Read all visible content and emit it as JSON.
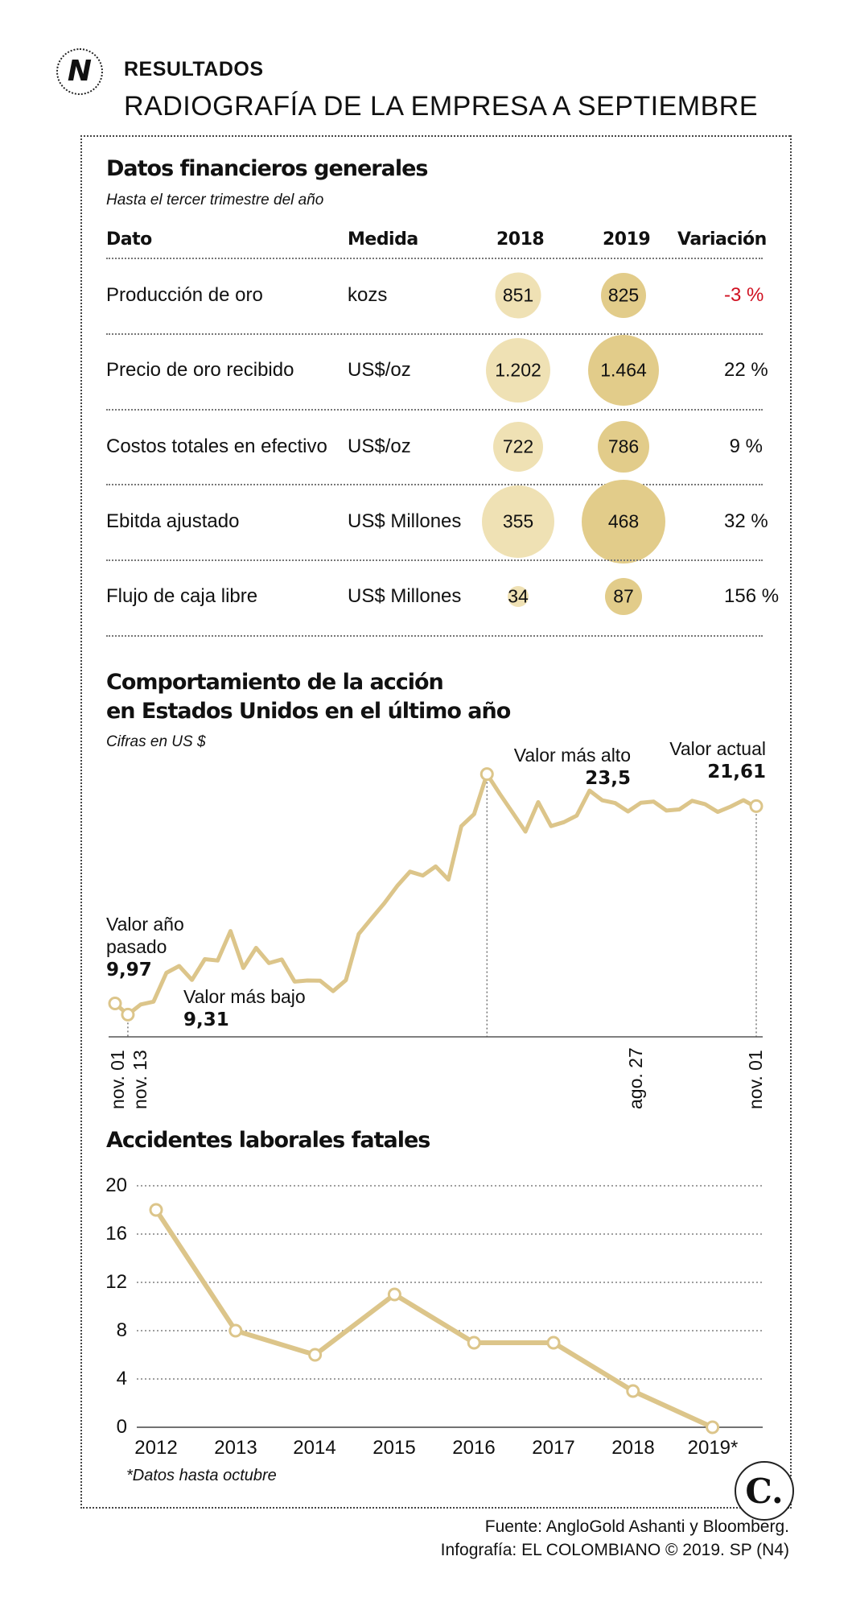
{
  "header": {
    "logo_letter": "N",
    "kicker": "RESULTADOS",
    "headline": "RADIOGRAFÍA DE LA EMPRESA A SEPTIEMBRE"
  },
  "financials": {
    "title": "Datos financieros generales",
    "subtitle": "Hasta el tercer trimestre del año",
    "columns": [
      "Dato",
      "Medida",
      "2018",
      "2019",
      "Variación"
    ],
    "rows": [
      {
        "dato": "Producción de oro",
        "medida": "kozs",
        "v2018": "851",
        "v2019": "825",
        "variacion": "-3 %"
      },
      {
        "dato": "Precio de oro recibido",
        "medida": "US$/oz",
        "v2018": "1.202",
        "v2019": "1.464",
        "variacion": "22 %"
      },
      {
        "dato": "Costos totales en efectivo",
        "medida": "US$/oz",
        "v2018": "722",
        "v2019": "786",
        "variacion": "9 %"
      },
      {
        "dato": "Ebitda ajustado",
        "medida": "US$ Millones",
        "v2018": "355",
        "v2019": "468",
        "variacion": "32 %"
      },
      {
        "dato": "Flujo de caja libre",
        "medida": "US$ Millones",
        "v2018": "34",
        "v2019": "87",
        "variacion": "156 %"
      }
    ],
    "colors": {
      "bubble_2018": "#efe1b4",
      "bubble_2019": "#e2cc8a",
      "negative": "#d01020"
    }
  },
  "stock": {
    "title_line1": "Comportamiento de la acción",
    "title_line2": "en Estados Unidos en el último año",
    "subtitle": "Cifras en US $",
    "annotations": {
      "last_year_label": "Valor año pasado",
      "last_year_line1": "Valor año",
      "last_year_line2": "pasado",
      "last_year_value": "9,97",
      "min_label": "Valor más bajo",
      "min_value": "9,31",
      "max_label": "Valor más alto",
      "max_value": "23,5",
      "current_label": "Valor actual",
      "current_value": "21,61"
    },
    "date_labels": [
      "nov. 01",
      "nov. 13",
      "ago. 27",
      "nov. 01"
    ]
  },
  "chart_data": [
    {
      "type": "line",
      "title": "Comportamiento de la acción en Estados Unidos en el último año",
      "subtitle": "Cifras en US $",
      "xlabel": "",
      "ylabel": "US $",
      "ylim": [
        8,
        25
      ],
      "x": [
        0,
        2,
        4,
        6,
        8,
        10,
        12,
        14,
        16,
        18,
        20,
        22,
        24,
        26,
        28,
        30,
        32,
        34,
        36,
        38,
        40,
        42,
        44,
        46,
        48,
        50,
        52,
        54,
        56,
        58,
        60,
        62,
        64,
        66,
        68,
        70,
        72,
        74,
        76,
        78,
        80,
        82,
        84,
        86,
        88,
        90,
        92,
        94,
        96,
        98,
        100
      ],
      "y": [
        9.97,
        9.31,
        10.0,
        10.4,
        11.6,
        11.9,
        11.6,
        12.8,
        12.2,
        14.1,
        12.4,
        13.3,
        12.0,
        12.6,
        11.6,
        11.2,
        11.0,
        10.9,
        11.6,
        13.8,
        14.8,
        16.2,
        17.0,
        17.4,
        17.5,
        18.4,
        17.2,
        20.1,
        21.3,
        23.5,
        22.1,
        21.0,
        20.4,
        22.0,
        20.1,
        20.6,
        21.4,
        22.5,
        21.61,
        21.9,
        21.61,
        21.61,
        21.61,
        21.61,
        21.61,
        21.61,
        21.61,
        21.61,
        21.61,
        21.61,
        21.61
      ],
      "x_range": [
        0,
        100
      ],
      "key_points": {
        "start": 9.97,
        "min": 9.31,
        "max": 23.5,
        "current": 21.61
      },
      "tick_labels": [
        "nov. 01",
        "nov. 13",
        "ago. 27",
        "nov. 01"
      ],
      "color": "#dcc58a",
      "grid": false
    },
    {
      "type": "line",
      "title": "Accidentes laborales fatales",
      "categories": [
        "2012",
        "2013",
        "2014",
        "2015",
        "2016",
        "2017",
        "2018",
        "2019*"
      ],
      "values": [
        18,
        8,
        6,
        11,
        7,
        7,
        3,
        0
      ],
      "ylim": [
        0,
        20
      ],
      "yticks": [
        "20",
        "16",
        "12",
        "8",
        "4",
        "0"
      ],
      "xlabel": "",
      "ylabel": "",
      "grid": true,
      "color": "#dcc58a",
      "note": "*Datos hasta octubre"
    }
  ],
  "footer": {
    "brand_letter": "C.",
    "source": "Fuente: AngloGold Ashanti y Bloomberg.",
    "credit": "Infografía: EL COLOMBIANO © 2019. SP (N4)"
  }
}
